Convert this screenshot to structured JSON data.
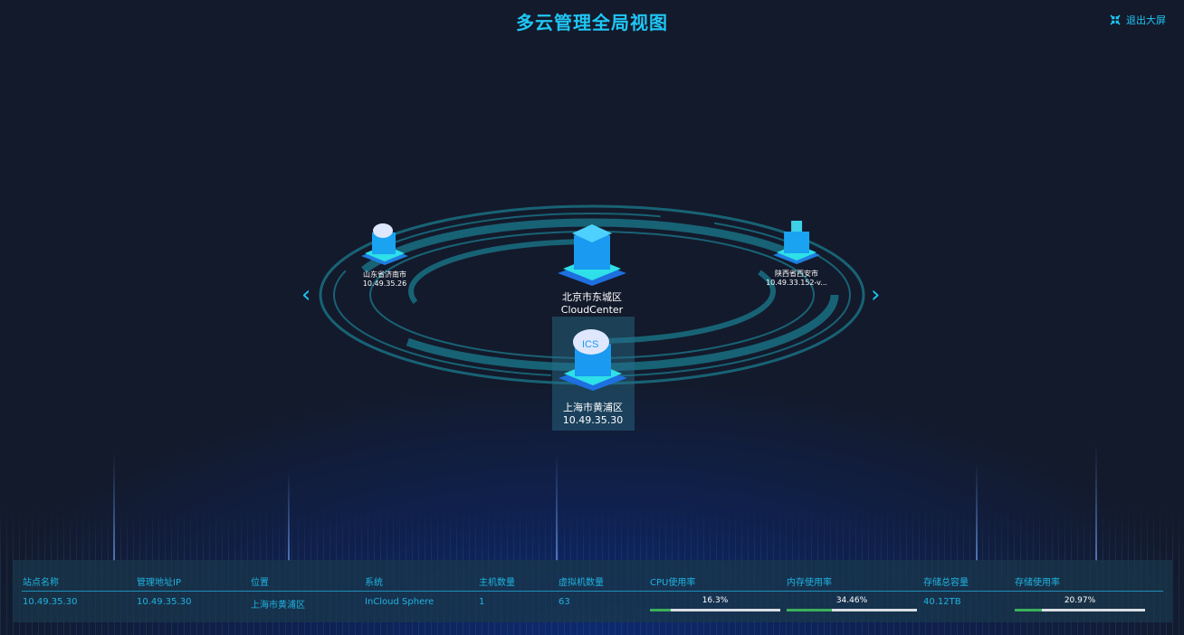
{
  "header": {
    "title": "多云管理全局视图",
    "exit_label": "退出大屏",
    "exit_icon": "collapse-fullscreen-icon"
  },
  "colors": {
    "accent": "#1fc6f5",
    "background": "#131a2b",
    "progress": "#3bb05a"
  },
  "carousel": {
    "prev_icon": "chevron-left-icon",
    "next_icon": "chevron-right-icon"
  },
  "nodes": [
    {
      "name": "山东省济南市",
      "ip": "10.49.35.26"
    },
    {
      "name": "北京市东城区",
      "ip": "CloudCenter"
    },
    {
      "name": "陕西省西安市",
      "ip": "10.49.33.152-v..."
    },
    {
      "name": "上海市黄浦区",
      "ip": "10.49.35.30",
      "selected": true
    }
  ],
  "table": {
    "headers": [
      "站点名称",
      "管理地址IP",
      "位置",
      "系统",
      "主机数量",
      "虚拟机数量",
      "CPU使用率",
      "内存使用率",
      "存储总容量",
      "存储使用率"
    ],
    "row": {
      "site": "10.49.35.30",
      "ip": "10.49.35.30",
      "location": "上海市黄浦区",
      "system": "InCloud Sphere",
      "hosts": "1",
      "vms": "63",
      "cpu": "16.3%",
      "cpu_value": 16.3,
      "mem": "34.46%",
      "mem_value": 34.46,
      "storage_total": "40.12TB",
      "storage": "20.97%",
      "storage_value": 20.97
    }
  }
}
